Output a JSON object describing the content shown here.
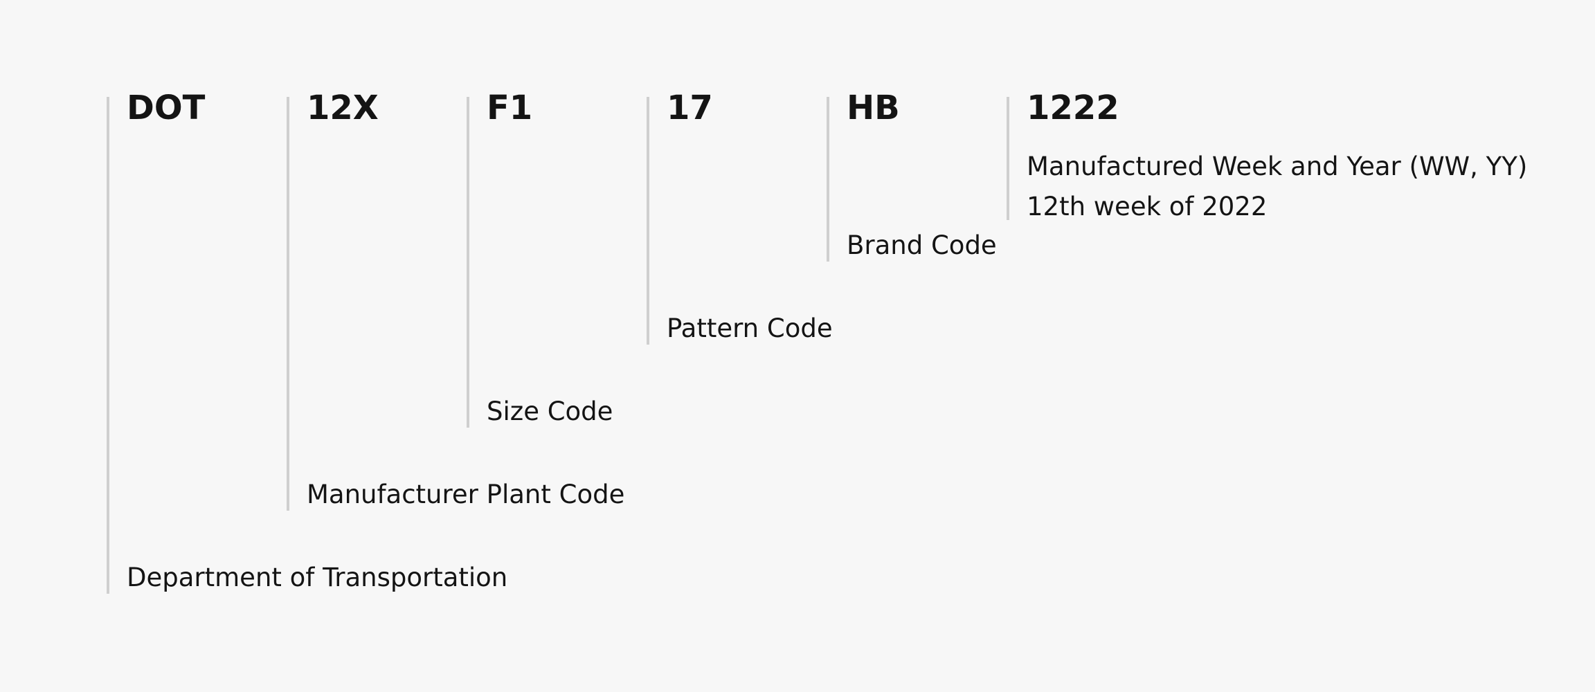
{
  "segments": [
    {
      "code": "DOT",
      "label": "Department of Transportation"
    },
    {
      "code": "12X",
      "label": "Manufacturer Plant Code"
    },
    {
      "code": "F1",
      "label": "Size Code"
    },
    {
      "code": "17",
      "label": "Pattern Code"
    },
    {
      "code": "HB",
      "label": "Brand Code"
    },
    {
      "code": "1222",
      "label": "Manufactured Week and Year (WW, YY)",
      "detail": "12th week of 2022"
    }
  ],
  "colors": {
    "background": "#f7f7f7",
    "divider": "#cfcfcf",
    "text": "#141414"
  }
}
